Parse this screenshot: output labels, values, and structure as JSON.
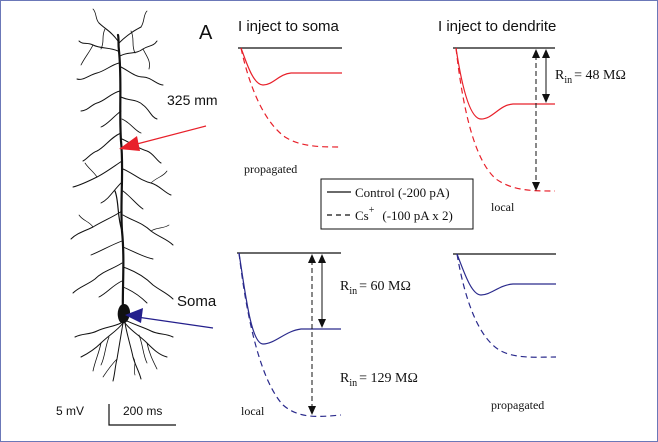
{
  "panel_label": "A",
  "headings": {
    "soma": "I inject to soma",
    "dendrite": "I inject to dendrite"
  },
  "neuron": {
    "distance_label": "325 mm",
    "soma_label": "Soma",
    "colors": {
      "dendrite_site": "#e8202a",
      "soma_site": "#241f8c",
      "morphology": "#111111"
    }
  },
  "traces": {
    "soma_top_caption": "propagated",
    "dendrite_top_caption": "local",
    "soma_bottom_caption": "local",
    "dendrite_bottom_caption": "propagated",
    "colors": {
      "red": "#e8202a",
      "blue": "#2a2a8c"
    }
  },
  "input_resistance": {
    "prefix": "R",
    "subscript": "in",
    "dendrite": "= 48 MΩ",
    "soma_control": "= 60 MΩ",
    "soma_cs": "= 129 MΩ"
  },
  "legend": {
    "control": "Control (-200 pA)",
    "cs_base": "Cs",
    "cs_sup": "+",
    "cs_rest": "(-100 pA x 2)"
  },
  "scale_bar": {
    "voltage": "5 mV",
    "time": "200 ms"
  }
}
